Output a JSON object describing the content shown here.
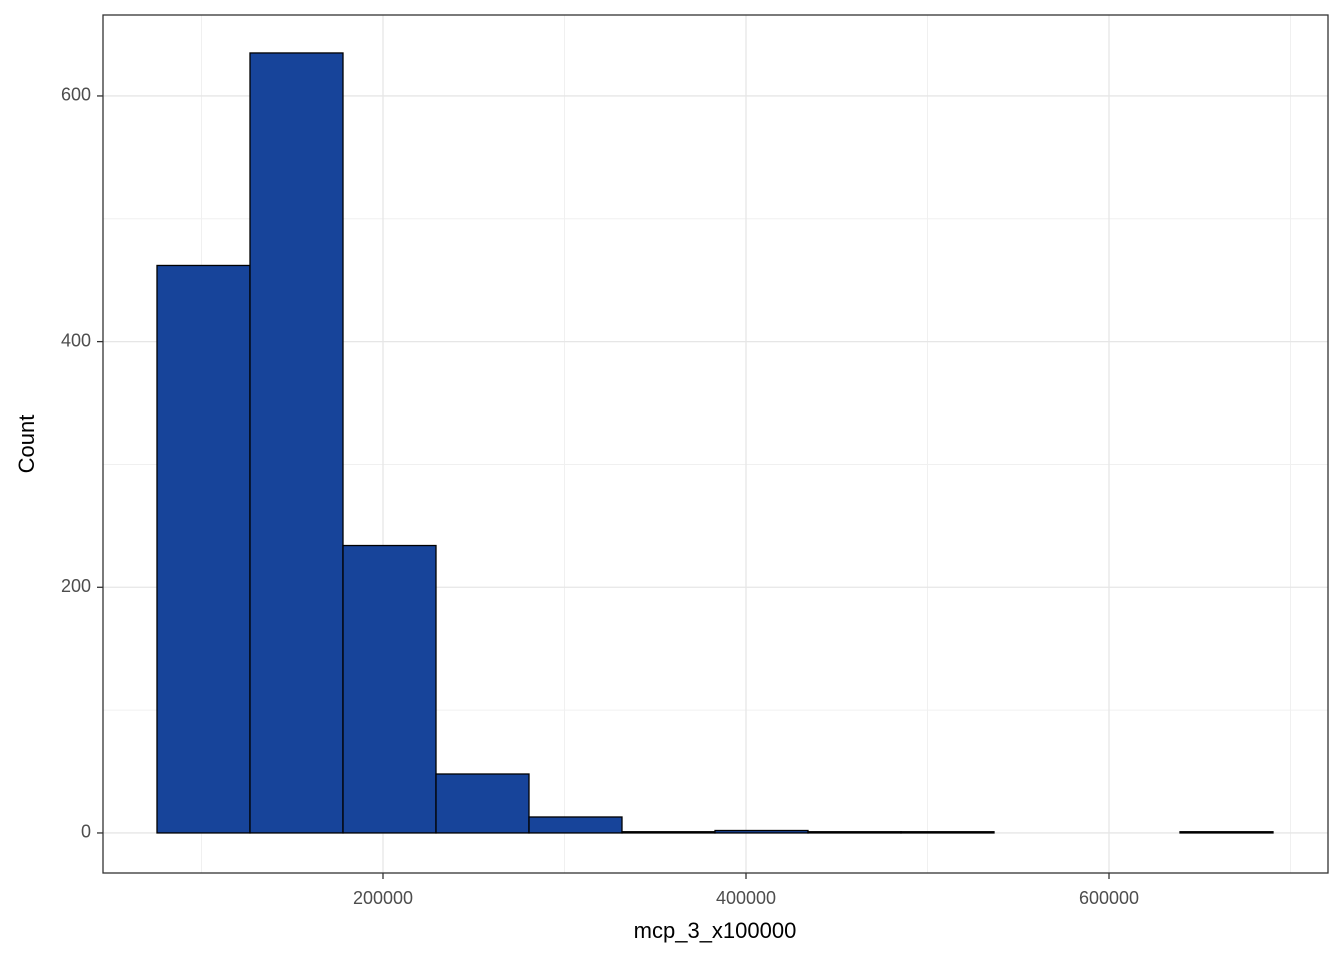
{
  "chart_data": {
    "type": "histogram",
    "x_label": "mcp_3_x100000",
    "y_label": "Count",
    "bins": [
      75480,
      126720,
      177960,
      229200,
      280440,
      331680,
      382920,
      434160,
      485400,
      536640,
      587880,
      639120,
      690360
    ],
    "values": [
      462,
      635,
      234,
      48,
      13,
      1,
      2,
      1,
      1,
      0,
      0,
      1
    ],
    "color": "#17449a",
    "edge_color": "#000000",
    "xlim": [
      45730,
      720660
    ],
    "ylim": [
      -32.6,
      665.9
    ],
    "xticks": [
      200000,
      400000,
      600000
    ],
    "yticks": [
      0,
      200,
      400,
      600
    ],
    "xminor": [
      100000,
      300000,
      500000,
      700000
    ],
    "yminor": [
      100,
      300,
      500
    ],
    "grid": true
  }
}
